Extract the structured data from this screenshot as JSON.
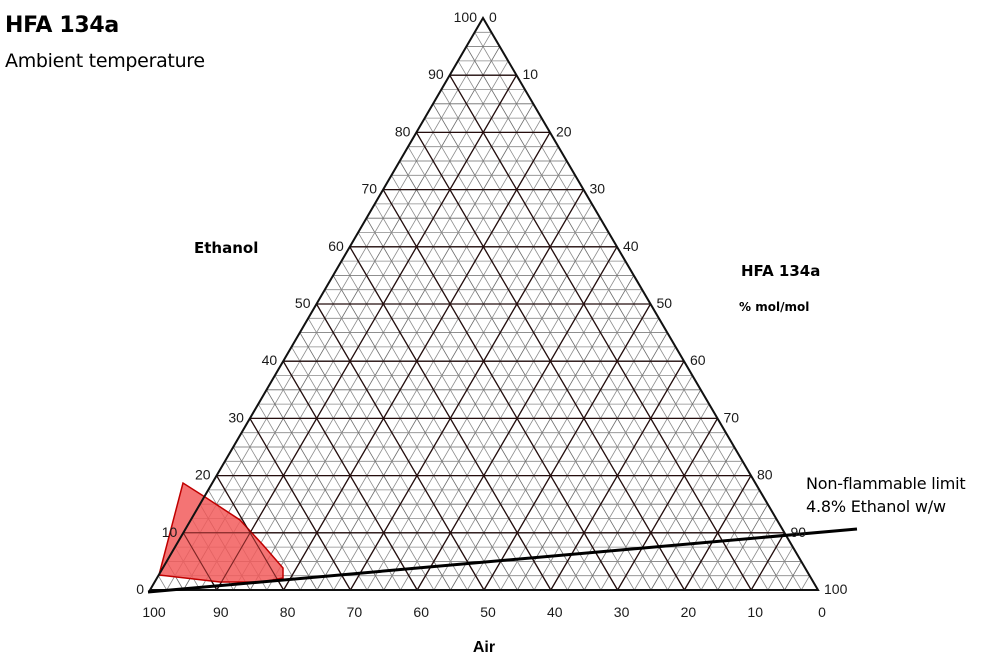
{
  "header": {
    "title": "HFA 134a",
    "subtitle": "Ambient temperature"
  },
  "axes": {
    "left": {
      "label": "Ethanol",
      "ticks": [
        "0",
        "10",
        "20",
        "30",
        "40",
        "50",
        "60",
        "70",
        "80",
        "90",
        "100"
      ]
    },
    "right": {
      "label": "HFA 134a",
      "unit": "% mol/mol",
      "ticks": [
        "0",
        "10",
        "20",
        "30",
        "40",
        "50",
        "60",
        "70",
        "80",
        "90",
        "100"
      ]
    },
    "bottom": {
      "label": "Air",
      "ticks": [
        "100",
        "90",
        "80",
        "70",
        "60",
        "50",
        "40",
        "30",
        "20",
        "10",
        "0"
      ]
    }
  },
  "annotation": {
    "line1": "Non-flammable limit",
    "line2": "4.8% Ethanol w/w"
  },
  "colors": {
    "flammable_region": "#f25c5c",
    "grid_major": "#1a1a1a",
    "grid_minor": "#8c8c8c",
    "limit_line": "#000000"
  },
  "chart_data": {
    "type": "ternary",
    "title": "HFA 134a",
    "subtitle": "Ambient temperature",
    "components": [
      "Ethanol",
      "HFA 134a",
      "Air"
    ],
    "unit": "% mol/mol",
    "axis_ranges": {
      "Ethanol": [
        0,
        100
      ],
      "HFA 134a": [
        0,
        100
      ],
      "Air": [
        0,
        100
      ]
    },
    "grid": {
      "major_step": 10,
      "minor_step": 2.5
    },
    "flammable_region": {
      "color": "#f25c5c",
      "approx_vertices_ethanol_hfa_air": [
        [
          2.5,
          0,
          97.5
        ],
        [
          18.5,
          0,
          81.5
        ],
        [
          16,
          4,
          80
        ],
        [
          12,
          8.5,
          79.5
        ],
        [
          7.5,
          13,
          79.5
        ],
        [
          3.5,
          18.5,
          78
        ],
        [
          2,
          19,
          79
        ],
        [
          1.3,
          16,
          82.7
        ],
        [
          1.3,
          10,
          88.7
        ]
      ]
    },
    "limit_line": {
      "label": "Non-flammable limit 4.8% Ethanol w/w",
      "from_ethanol_hfa_air": [
        0,
        0,
        100
      ],
      "to_ethanol_hfa_air": [
        8.5,
        91.5,
        0
      ]
    }
  }
}
